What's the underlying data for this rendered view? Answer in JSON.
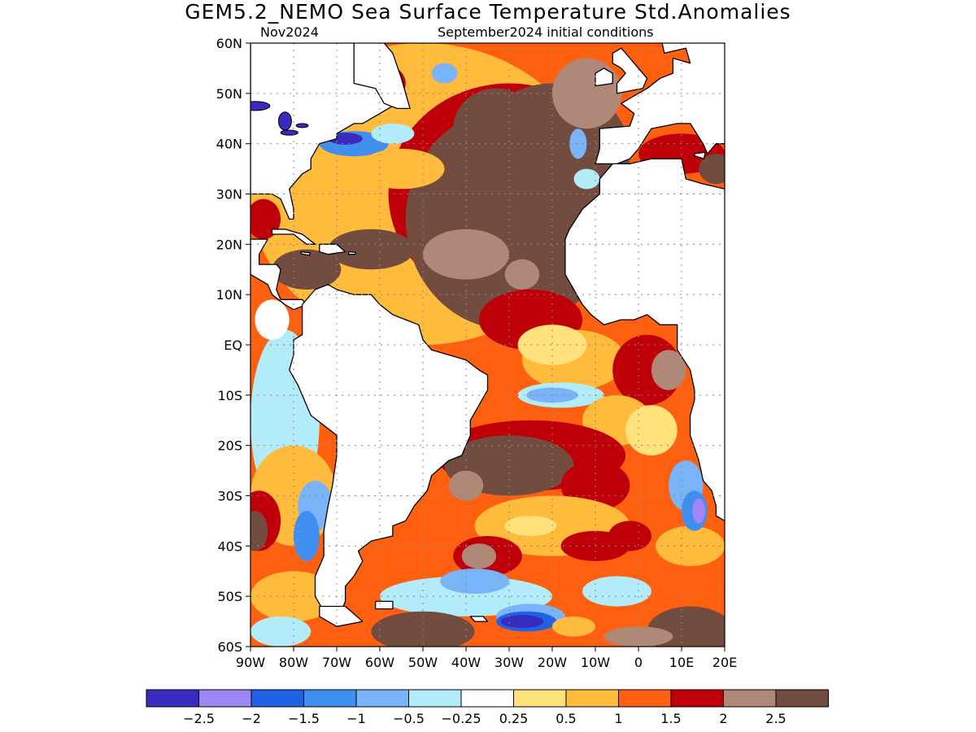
{
  "title": "GEM5.2_NEMO Sea Surface Temperature Std.Anomalies",
  "subtitle": {
    "target_month": "Nov2024",
    "initial_conditions": "September2024 initial conditions"
  },
  "map": {
    "lon_range": [
      -90,
      20
    ],
    "lat_range": [
      -60,
      60
    ],
    "grid": "dotted",
    "lat_labels": [
      "60N",
      "50N",
      "40N",
      "30N",
      "20N",
      "10N",
      "EQ",
      "10S",
      "20S",
      "30S",
      "40S",
      "50S",
      "60S"
    ],
    "lon_labels": [
      "90W",
      "80W",
      "70W",
      "60W",
      "50W",
      "40W",
      "30W",
      "20W",
      "10W",
      "0",
      "10E",
      "20E"
    ],
    "land_color": "#ffffff",
    "coast_color": "#000000"
  },
  "colorbar": {
    "colors": [
      "#3a2bbf",
      "#9f86f5",
      "#1f62e6",
      "#3e8ff0",
      "#78b4f7",
      "#b2ecf9",
      "#ffffff",
      "#ffe27c",
      "#ffbb3b",
      "#ff6010",
      "#c00008",
      "#b08878",
      "#734c40"
    ],
    "labels": [
      "-2.5",
      "-2",
      "-1.5",
      "-1",
      "-0.5",
      "-0.25",
      "0.25",
      "0.5",
      "1",
      "1.5",
      "2",
      "2.5"
    ]
  },
  "field_palette": {
    "strong_warm": "#734c40",
    "warm_2": "#b08878",
    "warm_15": "#c00008",
    "warm_1": "#ff6010",
    "warm_05": "#ffbb3b",
    "warm_025": "#ffe27c",
    "neutral": "#ffffff",
    "cool_025": "#b2ecf9",
    "cool_05": "#78b4f7",
    "cool_1": "#3e8ff0",
    "cool_15": "#1f62e6",
    "cool_2": "#9f86f5",
    "cool_25": "#3a2bbf"
  }
}
